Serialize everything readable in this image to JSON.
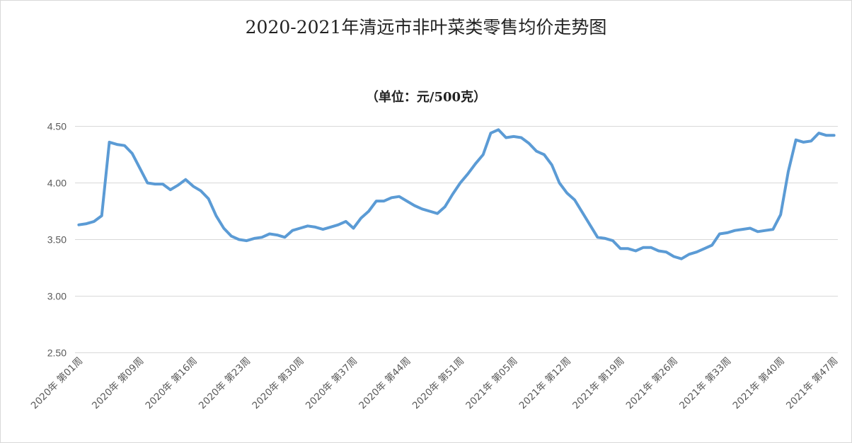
{
  "chart_data": {
    "type": "line",
    "title": "2020-2021年清远市非叶菜类零售均价走势图",
    "subtitle": "（单位：元/500克）",
    "ylim": [
      2.5,
      4.5
    ],
    "yticks": [
      "4.50",
      "4.00",
      "3.50",
      "3.00",
      "2.50"
    ],
    "ytick_values": [
      4.5,
      4.0,
      3.5,
      3.0,
      2.5
    ],
    "grid": true,
    "line_color": "#5b9bd5",
    "x_tick_labels": [
      "2020年 第01周",
      "2020年 第09周",
      "2020年 第16周",
      "2020年 第23周",
      "2020年 第30周",
      "2020年 第37周",
      "2020年 第44周",
      "2020年 第51周",
      "2021年 第05周",
      "2021年 第12周",
      "2021年 第19周",
      "2021年 第26周",
      "2021年 第33周",
      "2021年 第40周",
      "2021年 第47周"
    ],
    "x_tick_indices": [
      0,
      8,
      15,
      22,
      29,
      36,
      43,
      50,
      57,
      64,
      71,
      78,
      85,
      92,
      99
    ],
    "series": [
      {
        "values": [
          3.63,
          3.64,
          3.66,
          3.71,
          4.36,
          4.34,
          4.33,
          4.26,
          4.13,
          4.0,
          3.99,
          3.99,
          3.94,
          3.98,
          4.03,
          3.97,
          3.93,
          3.86,
          3.71,
          3.6,
          3.53,
          3.5,
          3.49,
          3.51,
          3.52,
          3.55,
          3.54,
          3.52,
          3.58,
          3.6,
          3.62,
          3.61,
          3.59,
          3.61,
          3.63,
          3.66,
          3.6,
          3.69,
          3.75,
          3.84,
          3.84,
          3.87,
          3.88,
          3.84,
          3.8,
          3.77,
          3.75,
          3.73,
          3.79,
          3.9,
          4.0,
          4.08,
          4.17,
          4.25,
          4.44,
          4.47,
          4.4,
          4.41,
          4.4,
          4.35,
          4.28,
          4.25,
          4.16,
          4.0,
          3.91,
          3.85,
          3.74,
          3.63,
          3.52,
          3.51,
          3.49,
          3.42,
          3.42,
          3.4,
          3.43,
          3.43,
          3.4,
          3.39,
          3.35,
          3.33,
          3.37,
          3.39,
          3.42,
          3.45,
          3.55,
          3.56,
          3.58,
          3.59,
          3.6,
          3.57,
          3.58,
          3.59,
          3.72,
          4.1,
          4.38,
          4.36,
          4.37,
          4.44,
          4.42,
          4.42
        ]
      }
    ]
  }
}
